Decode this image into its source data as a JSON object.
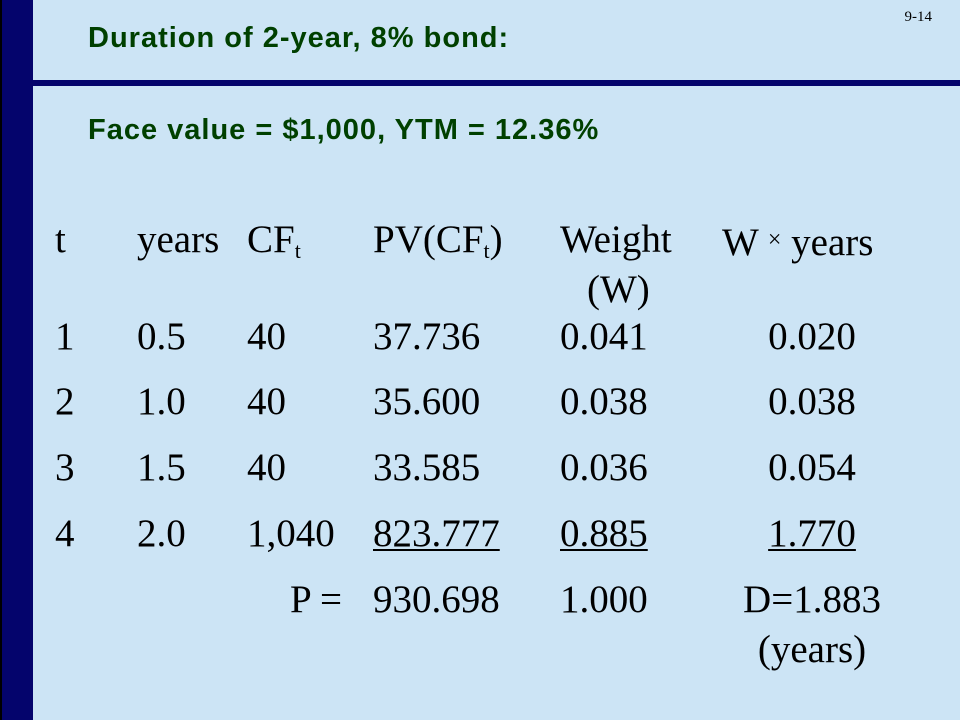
{
  "slide_number": "9-14",
  "heading": {
    "title": "Duration of 2-year, 8% bond:",
    "subtitle": "Face value = $1,000, YTM = 12.36%"
  },
  "table": {
    "headers": {
      "t": "t",
      "years": "years",
      "cf": "CF",
      "cf_sub": "t",
      "pv_open": "PV(CF",
      "pv_sub": "t",
      "pv_close": ")",
      "weight": "Weight",
      "weight_line2": "(W)",
      "wy_w": "W",
      "wy_times": "×",
      "wy_years": "years"
    },
    "rows": [
      {
        "t": "1",
        "years": "0.5",
        "cf": "40",
        "pv": "37.736",
        "weight": "0.041",
        "wy": "0.020"
      },
      {
        "t": "2",
        "years": "1.0",
        "cf": "40",
        "pv": "35.600",
        "weight": "0.038",
        "wy": "0.038"
      },
      {
        "t": "3",
        "years": "1.5",
        "cf": "40",
        "pv": "33.585",
        "weight": "0.036",
        "wy": "0.054"
      },
      {
        "t": "4",
        "years": "2.0",
        "cf": "1,040",
        "pv": "823.777",
        "weight": "0.885",
        "wy": "1.770"
      }
    ],
    "totals": {
      "label": "P =",
      "pv": "930.698",
      "weight": "1.000",
      "duration": "D=1.883",
      "duration_unit": "(years)"
    }
  }
}
